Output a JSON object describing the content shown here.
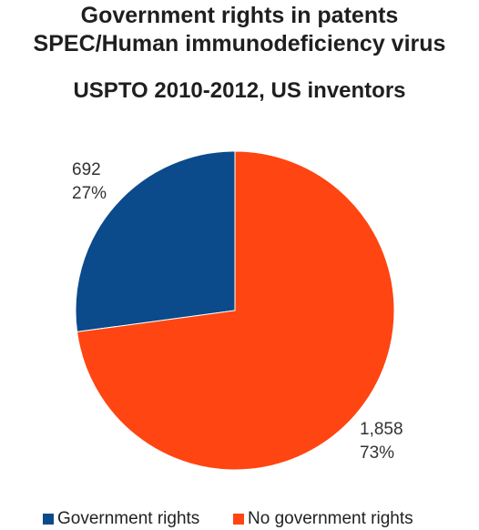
{
  "chart_data": {
    "type": "pie",
    "title_lines": [
      "Government rights in patents",
      "SPEC/Human immunodeficiency virus"
    ],
    "subtitle": "USPTO 2010-2012, US inventors",
    "slices": [
      {
        "name": "Government rights",
        "value": 692,
        "value_label": "692",
        "percent_label": "27%",
        "color": "#0b4a8b"
      },
      {
        "name": "No government rights",
        "value": 1858,
        "value_label": "1,858",
        "percent_label": "73%",
        "color": "#ff4511"
      }
    ],
    "legend_position": "bottom"
  }
}
